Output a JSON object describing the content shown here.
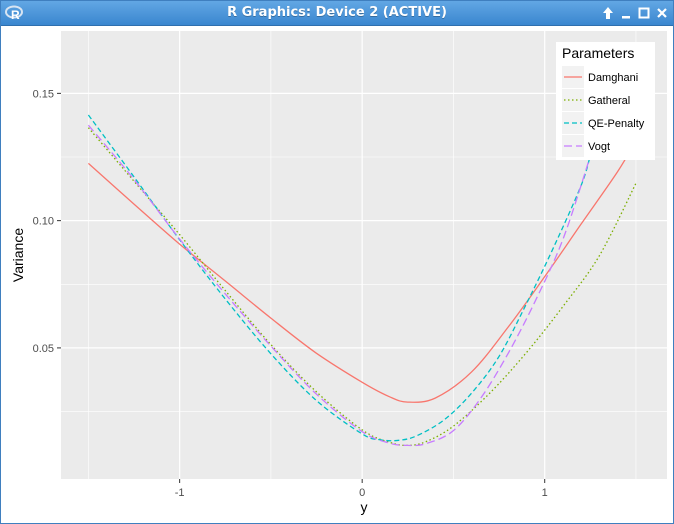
{
  "window": {
    "title": "R Graphics: Device 2 (ACTIVE)",
    "app_icon": "r-logo-icon",
    "buttons": [
      "sticky-arrow-up-icon",
      "minimize-icon",
      "maximize-icon",
      "close-icon"
    ]
  },
  "colors": {
    "Damghani": "#F8766D",
    "Gatheral": "#7CAE00",
    "QE-Penalty": "#00BFC4",
    "Vogt": "#C77CFF",
    "panel_bg": "#EBEBEB",
    "grid": "#FFFFFF"
  },
  "chart_data": {
    "type": "line",
    "title": "",
    "xlabel": "y",
    "ylabel": "Variance",
    "xlim": [
      -1.65,
      1.67
    ],
    "ylim": [
      -0.0015,
      0.1745
    ],
    "xticks": [
      -1,
      0,
      1
    ],
    "xtick_labels": [
      "-1",
      "0",
      "1"
    ],
    "yticks": [
      0.05,
      0.1,
      0.15
    ],
    "ytick_labels": [
      "0.05",
      "0.10",
      "0.15"
    ],
    "grid": true,
    "legend": {
      "title": "Parameters",
      "placement": "top-right",
      "entries": [
        "Damghani",
        "Gatheral",
        "QE-Penalty",
        "Vogt"
      ]
    },
    "series": [
      {
        "name": "Damghani",
        "linetype": "solid",
        "x": [
          -1.5,
          -1.25,
          -1.0,
          -0.75,
          -0.5,
          -0.25,
          0.0,
          0.15,
          0.25,
          0.4,
          0.6,
          0.8,
          1.0,
          1.2,
          1.4,
          1.5
        ],
        "y": [
          0.1225,
          0.1065,
          0.0908,
          0.0763,
          0.0617,
          0.0479,
          0.0365,
          0.0308,
          0.0287,
          0.0303,
          0.0406,
          0.0582,
          0.078,
          0.0987,
          0.1193,
          0.1315
        ]
      },
      {
        "name": "Gatheral",
        "linetype": "dotted",
        "x": [
          -1.5,
          -1.25,
          -1.0,
          -0.75,
          -0.5,
          -0.25,
          0.0,
          0.15,
          0.25,
          0.35,
          0.5,
          0.7,
          0.9,
          1.1,
          1.3,
          1.5
        ],
        "y": [
          0.1365,
          0.1155,
          0.0945,
          0.0725,
          0.0513,
          0.0327,
          0.0178,
          0.0129,
          0.0117,
          0.0132,
          0.0193,
          0.0323,
          0.0482,
          0.0663,
          0.0863,
          0.1147
        ]
      },
      {
        "name": "QE-Penalty",
        "linetype": "dashed",
        "x": [
          -1.5,
          -1.25,
          -1.0,
          -0.75,
          -0.5,
          -0.25,
          0.0,
          0.1,
          0.2,
          0.3,
          0.45,
          0.6,
          0.75,
          0.9,
          1.05,
          1.2,
          1.25
        ],
        "y": [
          0.1415,
          0.1172,
          0.0925,
          0.0692,
          0.0477,
          0.0293,
          0.0162,
          0.0139,
          0.0137,
          0.0155,
          0.0218,
          0.0323,
          0.0467,
          0.0674,
          0.0897,
          0.1139,
          0.1256
        ]
      },
      {
        "name": "Vogt",
        "linetype": "longdash",
        "x": [
          -1.5,
          -1.25,
          -1.0,
          -0.75,
          -0.5,
          -0.25,
          0.0,
          0.15,
          0.25,
          0.35,
          0.5,
          0.65,
          0.8,
          0.95,
          1.1,
          1.25
        ],
        "y": [
          0.1375,
          0.1162,
          0.0928,
          0.0712,
          0.0507,
          0.0318,
          0.0171,
          0.0126,
          0.0117,
          0.0124,
          0.0175,
          0.0303,
          0.0479,
          0.0687,
          0.0927,
          0.1253
        ]
      }
    ]
  }
}
